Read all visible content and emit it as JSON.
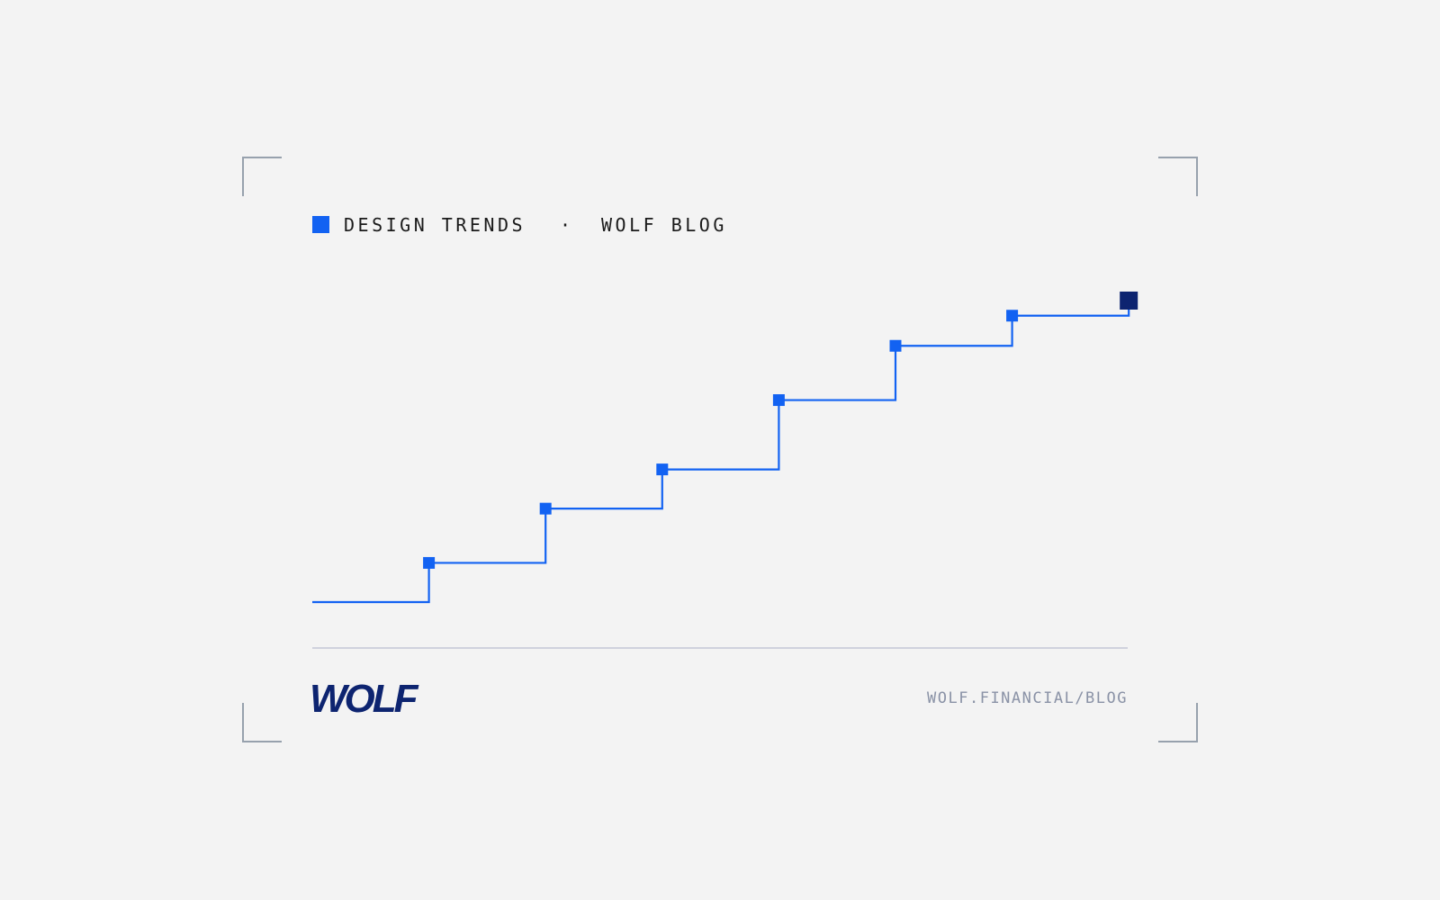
{
  "header": {
    "tag": "DESIGN TRENDS",
    "separator": "·",
    "source": "WOLF BLOG"
  },
  "chart_data": {
    "type": "step",
    "values": [
      0,
      13,
      31,
      44,
      67,
      85,
      95,
      100
    ],
    "ylim": [
      0,
      100
    ],
    "color": "#1262f2",
    "last_color": "#0d2470"
  },
  "footer": {
    "logo": "WOLF",
    "url": "WOLF.FINANCIAL/BLOG"
  }
}
